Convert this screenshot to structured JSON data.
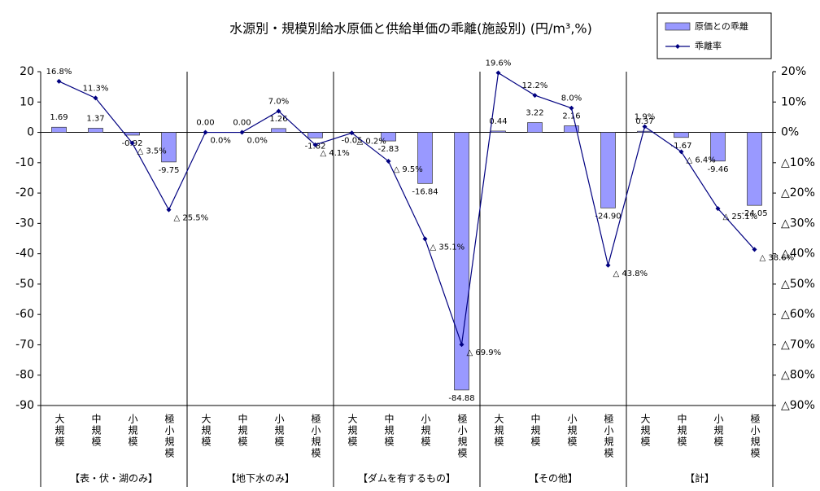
{
  "chart_data": {
    "type": "bar_line",
    "title": "水源別・規模別給水原価と供給単価の乖離(施設別) (円/m³,%)",
    "categories": [
      "大規模",
      "中規模",
      "小規模",
      "極小規模",
      "大規模",
      "中規模",
      "小規模",
      "極小規模",
      "大規模",
      "中規模",
      "小規模",
      "極小規模",
      "大規模",
      "中規模",
      "小規模",
      "極小規模",
      "大規模",
      "中規模",
      "小規模",
      "極小規模"
    ],
    "groups": [
      "【表・伏・湖のみ】",
      "【地下水のみ】",
      "【ダムを有するもの】",
      "【その他】",
      "【計】"
    ],
    "series": [
      {
        "name": "原価との乖離",
        "color": "#9999ff",
        "values": [
          1.69,
          1.37,
          -0.92,
          -9.75,
          0,
          0,
          1.26,
          -1.82,
          -0.05,
          -2.83,
          -16.84,
          -84.88,
          0.44,
          3.22,
          2.16,
          -24.9,
          0.37,
          -1.67,
          -9.46,
          -24.05
        ],
        "value_labels": [
          "1.69",
          "1.37",
          "-0.92",
          "-9.75",
          "0.00",
          "0.00",
          "1.26",
          "-1.82",
          "-0.05",
          "-2.83",
          "-16.84",
          "-84.88",
          "0.44",
          "3.22",
          "2.16",
          "-24.90",
          "0.37",
          "-1.67",
          "-9.46",
          "-24.05"
        ]
      },
      {
        "name": "乖離率",
        "color": "#000080",
        "axis": "y2",
        "values": [
          16.8,
          11.3,
          -3.5,
          -25.5,
          0,
          0,
          7,
          -4.1,
          -0.2,
          -9.5,
          -35.1,
          -69.9,
          19.6,
          12.2,
          8,
          -43.8,
          1.9,
          -6.4,
          -25.1,
          -38.6
        ],
        "value_labels": [
          "16.8%",
          "11.3%",
          "△ 3.5%",
          "△ 25.5%",
          "0.0%",
          "0.0%",
          "7.0%",
          "△ 4.1%",
          "△ 0.2%",
          "△ 9.5%",
          "△ 35.1%",
          "△ 69.9%",
          "19.6%",
          "12.2%",
          "8.0%",
          "△ 43.8%",
          "1.9%",
          "△ 6.4%",
          "△ 25.1%",
          "△ 38.6%"
        ]
      }
    ],
    "ylim": [
      -90,
      20
    ],
    "yticks": [
      20,
      10,
      0,
      -10,
      -20,
      -30,
      -40,
      -50,
      -60,
      -70,
      -80,
      -90
    ],
    "y2lim": [
      -90,
      20
    ],
    "y2ticks": [
      {
        "value": 20,
        "label": "20%"
      },
      {
        "value": 10,
        "label": "10%"
      },
      {
        "value": 0,
        "label": "0%"
      },
      {
        "value": -10,
        "label": "△10%"
      },
      {
        "value": -20,
        "label": "△20%"
      },
      {
        "value": -30,
        "label": "△30%"
      },
      {
        "value": -40,
        "label": "△40%"
      },
      {
        "value": -50,
        "label": "△50%"
      },
      {
        "value": -60,
        "label": "△60%"
      },
      {
        "value": -70,
        "label": "△70%"
      },
      {
        "value": -80,
        "label": "△80%"
      },
      {
        "value": -90,
        "label": "△90%"
      }
    ],
    "legend": "top-right"
  }
}
